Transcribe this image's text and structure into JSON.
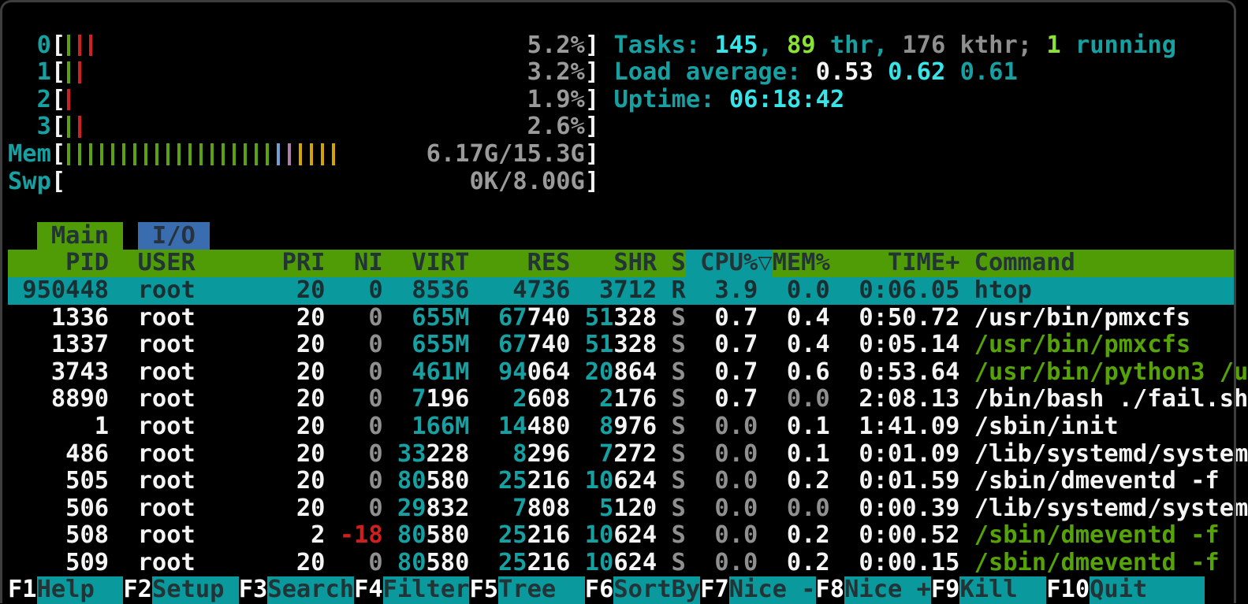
{
  "palette": {
    "teal_text": "#16a0a2",
    "bright_cyan": "#37e5e8",
    "bright_green": "#8ae234",
    "gray": "#8f8f8f",
    "white": "#f4f4f4",
    "command_green": "#55a306",
    "red": "#d01f1f",
    "header_bg": "#4f9c06",
    "tab_blue": "#3a6cb0",
    "selection_teal": "#0a9a9e",
    "bar_green": "#5ba20c",
    "bar_red": "#cc2222",
    "bar_blue": "#729fcf",
    "bar_purple": "#ad7fa8",
    "bar_yellow": "#d2a400",
    "dark_text": "#233436"
  },
  "meters": {
    "cpus": [
      {
        "label": "0",
        "pct": "5.2%",
        "ticks": [
          "g",
          "r",
          "r"
        ]
      },
      {
        "label": "1",
        "pct": "3.2%",
        "ticks": [
          "g",
          "r"
        ]
      },
      {
        "label": "2",
        "pct": "1.9%",
        "ticks": [
          "r"
        ]
      },
      {
        "label": "3",
        "pct": "2.6%",
        "ticks": [
          "g",
          "r"
        ]
      }
    ],
    "mem": {
      "label": "Mem",
      "value": "6.17G/15.3G",
      "ticks": [
        "g",
        "g",
        "g",
        "g",
        "g",
        "g",
        "g",
        "g",
        "g",
        "g",
        "g",
        "g",
        "g",
        "g",
        "g",
        "g",
        "g",
        "g",
        "g",
        "b",
        "p",
        "y",
        "y",
        "y",
        "y"
      ]
    },
    "swp": {
      "label": "Swp",
      "value": "0K/8.00G",
      "ticks": []
    }
  },
  "summary": {
    "tasks": [
      {
        "t": "Tasks: ",
        "c": "t"
      },
      {
        "t": "145",
        "c": "cy"
      },
      {
        "t": ", ",
        "c": "t"
      },
      {
        "t": "89",
        "c": "li"
      },
      {
        "t": " thr, ",
        "c": "t"
      },
      {
        "t": "176",
        "c": "g"
      },
      {
        "t": " kthr; ",
        "c": "g"
      },
      {
        "t": "1",
        "c": "li"
      },
      {
        "t": " running",
        "c": "t"
      }
    ],
    "load": [
      {
        "t": "Load average: ",
        "c": "t"
      },
      {
        "t": "0.53 ",
        "c": "w"
      },
      {
        "t": "0.62 ",
        "c": "cy"
      },
      {
        "t": "0.61",
        "c": "t"
      }
    ],
    "uptime": [
      {
        "t": "Uptime: ",
        "c": "t"
      },
      {
        "t": "06:18:42",
        "c": "cy"
      }
    ]
  },
  "tabs": {
    "main": "Main",
    "io": "I/O"
  },
  "table": {
    "header": {
      "pid": "PID",
      "user": "USER",
      "pri": "PRI",
      "ni": "NI",
      "virt": "VIRT",
      "res": "RES",
      "shr": "SHR",
      "s": "S",
      "cpu": "CPU%",
      "sort_arrow": "▽",
      "mem": "MEM%",
      "time": "TIME+",
      "cmd": "Command"
    },
    "sort_column": "CPU%",
    "rows": [
      {
        "pid": "950448",
        "user": "root",
        "pri": "20",
        "ni": "0",
        "ni_c": "g",
        "virt": [
          "",
          "8536"
        ],
        "res": [
          "",
          "4736"
        ],
        "shr": [
          "",
          "3712"
        ],
        "s": "R",
        "cpu": "3.9",
        "cpu_c": "w",
        "mem": "0.0",
        "mem_c": "g",
        "time": "0:06.05",
        "cmd": "htop",
        "cmd_c": "w",
        "selected": true
      },
      {
        "pid": "1336",
        "user": "root",
        "pri": "20",
        "ni": "0",
        "ni_c": "g",
        "virt": [
          "655M",
          ""
        ],
        "res": [
          "67",
          "740"
        ],
        "shr": [
          "51",
          "328"
        ],
        "s": "S",
        "cpu": "0.7",
        "cpu_c": "w",
        "mem": "0.4",
        "mem_c": "w",
        "time": "0:50.72",
        "cmd": "/usr/bin/pmxcfs",
        "cmd_c": "w",
        "selected": false
      },
      {
        "pid": "1337",
        "user": "root",
        "pri": "20",
        "ni": "0",
        "ni_c": "g",
        "virt": [
          "655M",
          ""
        ],
        "res": [
          "67",
          "740"
        ],
        "shr": [
          "51",
          "328"
        ],
        "s": "S",
        "cpu": "0.7",
        "cpu_c": "w",
        "mem": "0.4",
        "mem_c": "w",
        "time": "0:05.14",
        "cmd": "/usr/bin/pmxcfs",
        "cmd_c": "gr",
        "selected": false
      },
      {
        "pid": "3743",
        "user": "root",
        "pri": "20",
        "ni": "0",
        "ni_c": "g",
        "virt": [
          "461M",
          ""
        ],
        "res": [
          "94",
          "064"
        ],
        "shr": [
          "20",
          "864"
        ],
        "s": "S",
        "cpu": "0.7",
        "cpu_c": "w",
        "mem": "0.6",
        "mem_c": "w",
        "time": "0:53.64",
        "cmd": "/usr/bin/python3 /u",
        "cmd_c": "gr",
        "selected": false
      },
      {
        "pid": "8890",
        "user": "root",
        "pri": "20",
        "ni": "0",
        "ni_c": "g",
        "virt": [
          "7",
          "196"
        ],
        "res": [
          "2",
          "608"
        ],
        "shr": [
          "2",
          "176"
        ],
        "s": "S",
        "cpu": "0.7",
        "cpu_c": "w",
        "mem": "0.0",
        "mem_c": "g",
        "time": "2:08.13",
        "cmd": "/bin/bash ./fail.sh",
        "cmd_c": "w",
        "selected": false
      },
      {
        "pid": "1",
        "user": "root",
        "pri": "20",
        "ni": "0",
        "ni_c": "g",
        "virt": [
          "166M",
          ""
        ],
        "res": [
          "14",
          "480"
        ],
        "shr": [
          "8",
          "976"
        ],
        "s": "S",
        "cpu": "0.0",
        "cpu_c": "g",
        "mem": "0.1",
        "mem_c": "w",
        "time": "1:41.09",
        "cmd": "/sbin/init",
        "cmd_c": "w",
        "selected": false
      },
      {
        "pid": "486",
        "user": "root",
        "pri": "20",
        "ni": "0",
        "ni_c": "g",
        "virt": [
          "33",
          "228"
        ],
        "res": [
          "8",
          "296"
        ],
        "shr": [
          "7",
          "272"
        ],
        "s": "S",
        "cpu": "0.0",
        "cpu_c": "g",
        "mem": "0.1",
        "mem_c": "w",
        "time": "0:01.09",
        "cmd": "/lib/systemd/system",
        "cmd_c": "w",
        "selected": false
      },
      {
        "pid": "505",
        "user": "root",
        "pri": "20",
        "ni": "0",
        "ni_c": "g",
        "virt": [
          "80",
          "580"
        ],
        "res": [
          "25",
          "216"
        ],
        "shr": [
          "10",
          "624"
        ],
        "s": "S",
        "cpu": "0.0",
        "cpu_c": "g",
        "mem": "0.2",
        "mem_c": "w",
        "time": "0:01.59",
        "cmd": "/sbin/dmeventd -f",
        "cmd_c": "w",
        "selected": false
      },
      {
        "pid": "506",
        "user": "root",
        "pri": "20",
        "ni": "0",
        "ni_c": "g",
        "virt": [
          "29",
          "832"
        ],
        "res": [
          "7",
          "808"
        ],
        "shr": [
          "5",
          "120"
        ],
        "s": "S",
        "cpu": "0.0",
        "cpu_c": "g",
        "mem": "0.0",
        "mem_c": "g",
        "time": "0:00.39",
        "cmd": "/lib/systemd/system",
        "cmd_c": "w",
        "selected": false
      },
      {
        "pid": "508",
        "user": "root",
        "pri": "2",
        "ni": "-18",
        "ni_c": "rd",
        "virt": [
          "80",
          "580"
        ],
        "res": [
          "25",
          "216"
        ],
        "shr": [
          "10",
          "624"
        ],
        "s": "S",
        "cpu": "0.0",
        "cpu_c": "g",
        "mem": "0.2",
        "mem_c": "w",
        "time": "0:00.52",
        "cmd": "/sbin/dmeventd -f",
        "cmd_c": "gr",
        "selected": false
      },
      {
        "pid": "509",
        "user": "root",
        "pri": "20",
        "ni": "0",
        "ni_c": "g",
        "virt": [
          "80",
          "580"
        ],
        "res": [
          "25",
          "216"
        ],
        "shr": [
          "10",
          "624"
        ],
        "s": "S",
        "cpu": "0.0",
        "cpu_c": "g",
        "mem": "0.2",
        "mem_c": "w",
        "time": "0:00.15",
        "cmd": "/sbin/dmeventd -f",
        "cmd_c": "gr",
        "selected": false
      }
    ]
  },
  "fkeys": [
    {
      "key": "F1",
      "label": "Help"
    },
    {
      "key": "F2",
      "label": "Setup"
    },
    {
      "key": "F3",
      "label": "Search"
    },
    {
      "key": "F4",
      "label": "Filter"
    },
    {
      "key": "F5",
      "label": "Tree"
    },
    {
      "key": "F6",
      "label": "SortBy"
    },
    {
      "key": "F7",
      "label": "Nice -"
    },
    {
      "key": "F8",
      "label": "Nice +"
    },
    {
      "key": "F9",
      "label": "Kill"
    },
    {
      "key": "F10",
      "label": "Quit"
    }
  ]
}
